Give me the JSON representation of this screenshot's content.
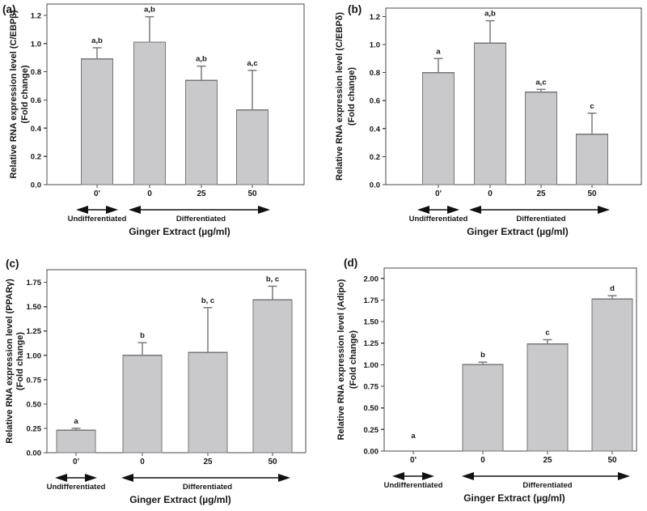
{
  "figure": {
    "background": "#ffffff",
    "bar_fill": "#c9c9cb",
    "bar_border": "#76767a",
    "error_color": "#7a7a7d",
    "axis_color": "#48484b",
    "text_color": "#161616",
    "arrow_color": "#111111"
  },
  "chart_data": [
    {
      "type": "bar",
      "panel_label": "(a)",
      "ylabel": "Relative RNA expression level (C/EBPβ)",
      "ylabel_line2": "(Fold change)",
      "xlabel": "Ginger Extract (µg/ml)",
      "categories": [
        "0'",
        "0",
        "25",
        "50"
      ],
      "values": [
        0.89,
        1.01,
        0.74,
        0.53
      ],
      "errors": [
        0.08,
        0.18,
        0.1,
        0.28
      ],
      "sig_labels": [
        "a,b",
        "a,b",
        "a,b",
        "a,c"
      ],
      "ylim": [
        0,
        1.28
      ],
      "yticks": [
        0,
        0.2,
        0.4,
        0.6,
        0.8,
        1.0,
        1.2
      ],
      "ytick_decimals": 1,
      "grid": false,
      "group_arrows": [
        {
          "label": "Undifferentiated",
          "bars": [
            0,
            0
          ]
        },
        {
          "label": "Differentiated",
          "bars": [
            1,
            3
          ]
        }
      ]
    },
    {
      "type": "bar",
      "panel_label": "(b)",
      "ylabel": "Relative RNA expression level (C/EBPδ)",
      "ylabel_line2": "(Fold change)",
      "xlabel": "Ginger Extract (µg/ml)",
      "categories": [
        "0'",
        "0",
        "25",
        "50"
      ],
      "values": [
        0.8,
        1.01,
        0.66,
        0.36
      ],
      "errors": [
        0.1,
        0.16,
        0.02,
        0.15
      ],
      "sig_labels": [
        "a",
        "a,b",
        "a,c",
        "c"
      ],
      "ylim": [
        0,
        1.26
      ],
      "yticks": [
        0,
        0.2,
        0.4,
        0.6,
        0.8,
        1.0,
        1.2
      ],
      "ytick_decimals": 1,
      "grid": false,
      "group_arrows": [
        {
          "label": "Undifferentiated",
          "bars": [
            0,
            0
          ]
        },
        {
          "label": "Differentiated",
          "bars": [
            1,
            3
          ]
        }
      ]
    },
    {
      "type": "bar",
      "panel_label": "(c)",
      "ylabel": "Relative RNA expression level (PPARγ)",
      "ylabel_line2": "(Fold change)",
      "xlabel": "Ginger Extract (µg/ml)",
      "categories": [
        "0'",
        "0",
        "25",
        "50"
      ],
      "values": [
        0.23,
        1.0,
        1.03,
        1.57
      ],
      "errors": [
        0.02,
        0.13,
        0.46,
        0.14
      ],
      "sig_labels": [
        "a",
        "b",
        "b, c",
        "b, c"
      ],
      "ylim": [
        0,
        1.88
      ],
      "yticks": [
        0,
        0.25,
        0.5,
        0.75,
        1.0,
        1.25,
        1.5,
        1.75
      ],
      "ytick_decimals": 2,
      "grid": false,
      "group_arrows": [
        {
          "label": "Undifferentiated",
          "bars": [
            0,
            0
          ]
        },
        {
          "label": "Differentiated",
          "bars": [
            1,
            3
          ]
        }
      ]
    },
    {
      "type": "bar",
      "panel_label": "(d)",
      "ylabel": "Relative RNA expression level (Adipo)",
      "ylabel_line2": "(Fold change)",
      "xlabel": "Ginger Extract (µg/ml)",
      "categories": [
        "0'",
        "0",
        "25",
        "50"
      ],
      "values": [
        0.0,
        1.0,
        1.24,
        1.76
      ],
      "errors": [
        0.0,
        0.03,
        0.05,
        0.04
      ],
      "sig_labels": [
        "a",
        "b",
        "c",
        "d"
      ],
      "ylim": [
        0,
        2.12
      ],
      "yticks": [
        0,
        0.25,
        0.5,
        0.75,
        1.0,
        1.25,
        1.5,
        1.75,
        2.0
      ],
      "ytick_decimals": 2,
      "grid": false,
      "group_arrows": [
        {
          "label": "Undifferentiated",
          "bars": [
            0,
            0
          ]
        },
        {
          "label": "Differentiated",
          "bars": [
            1,
            3
          ]
        }
      ]
    }
  ]
}
